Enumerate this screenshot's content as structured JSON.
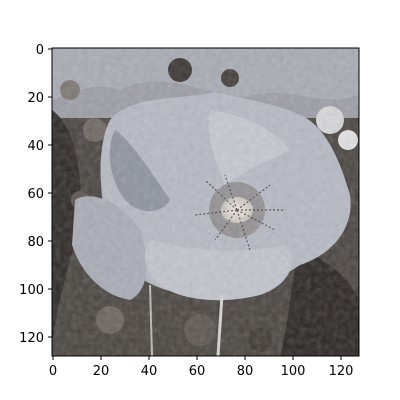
{
  "figure": {
    "x_ticks": [
      "0",
      "20",
      "40",
      "60",
      "80",
      "100",
      "120"
    ],
    "y_ticks": [
      "0",
      "20",
      "40",
      "60",
      "80",
      "100",
      "120"
    ],
    "x_range": [
      -0.5,
      127.5
    ],
    "y_range": [
      -0.5,
      127.5
    ],
    "y_inverted": true,
    "grid": false
  },
  "colors": {
    "petal": "#b9bcc5",
    "petal_shadow": "#8e929c",
    "background_dark": "#2e2926",
    "background_light": "#8a847f",
    "sky": "#a7a9b2",
    "center": "#e8ddd2"
  }
}
